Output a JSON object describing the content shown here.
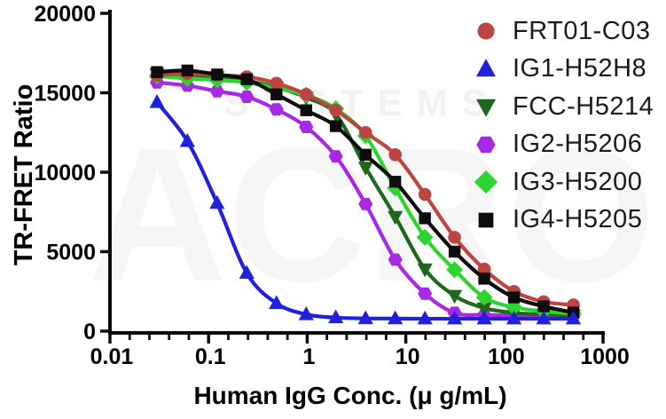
{
  "watermark": {
    "big_text": "ACRO",
    "small_text": "SYSTEMS"
  },
  "chart_data": {
    "type": "line",
    "title": "",
    "xlabel": "Human IgG Conc. (μ g/mL)",
    "ylabel": "TR-FRET Ratio",
    "x_scale": "log",
    "xlim": [
      0.01,
      1000
    ],
    "ylim": [
      0,
      20000
    ],
    "grid": false,
    "legend_position": "top-right",
    "x_tick_labels": [
      "0.01",
      "0.1",
      "1",
      "10",
      "100",
      "1000"
    ],
    "x_major_ticks": [
      0.01,
      0.1,
      1,
      10,
      100,
      1000
    ],
    "minor_ticks_per_decade": 4,
    "y_major_ticks": [
      0,
      5000,
      10000,
      15000,
      20000
    ],
    "y_tick_labels": [
      "0",
      "5000",
      "10000",
      "15000",
      "20000"
    ],
    "x": [
      0.03,
      0.061,
      0.122,
      0.244,
      0.488,
      0.977,
      1.95,
      3.91,
      7.81,
      15.63,
      31.25,
      62.5,
      125,
      250,
      500
    ],
    "series": [
      {
        "name": "FRT01-C03",
        "marker": "circle",
        "color": "#bc4542",
        "values": [
          16100,
          16200,
          16100,
          16000,
          15600,
          14900,
          13900,
          12500,
          11100,
          8600,
          5900,
          3900,
          2500,
          1850,
          1650
        ]
      },
      {
        "name": "IG1-H52H8",
        "marker": "triangle-up",
        "color": "#2121dd",
        "values": [
          14400,
          11950,
          8050,
          3650,
          1750,
          1050,
          850,
          800,
          790,
          780,
          780,
          780,
          780,
          780,
          780
        ]
      },
      {
        "name": "FCC-H5214",
        "marker": "triangle-down",
        "color": "#1d681d",
        "values": [
          16200,
          16100,
          16000,
          15750,
          15350,
          14700,
          13650,
          10300,
          7200,
          3900,
          2230,
          1450,
          1150,
          1050,
          1000
        ]
      },
      {
        "name": "IG2-H5206",
        "marker": "hexagon",
        "color": "#a928e6",
        "values": [
          15650,
          15450,
          15100,
          14750,
          13950,
          12850,
          11000,
          8000,
          4500,
          2360,
          1150,
          1020,
          980,
          960,
          950
        ]
      },
      {
        "name": "IG3-H5200",
        "marker": "diamond",
        "color": "#2fd42f",
        "values": [
          16050,
          15900,
          15800,
          15650,
          15300,
          14850,
          14000,
          12300,
          9000,
          5900,
          3860,
          2120,
          1500,
          1250,
          1100
        ]
      },
      {
        "name": "IG4-H5205",
        "marker": "square",
        "color": "#0d0d0d",
        "values": [
          16300,
          16400,
          16150,
          15850,
          14900,
          13900,
          12900,
          11100,
          9400,
          7100,
          5000,
          3300,
          2120,
          1560,
          1170
        ]
      }
    ]
  }
}
